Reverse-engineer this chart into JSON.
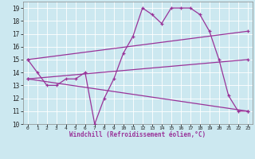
{
  "xlabel": "Windchill (Refroidissement éolien,°C)",
  "bg_color": "#cce8f0",
  "line_color": "#993399",
  "grid_color": "#ffffff",
  "xlim": [
    -0.5,
    23.5
  ],
  "ylim": [
    10,
    19.5
  ],
  "xticks": [
    0,
    1,
    2,
    3,
    4,
    5,
    6,
    7,
    8,
    9,
    10,
    11,
    12,
    13,
    14,
    15,
    16,
    17,
    18,
    19,
    20,
    21,
    22,
    23
  ],
  "yticks": [
    10,
    11,
    12,
    13,
    14,
    15,
    16,
    17,
    18,
    19
  ],
  "series0_x": [
    0,
    1,
    2,
    3,
    4,
    5,
    6,
    7,
    8,
    9,
    10,
    11,
    12,
    13,
    14,
    15,
    16,
    17,
    18,
    19,
    20,
    21,
    22,
    23
  ],
  "series0_y": [
    15,
    14,
    13,
    13,
    13.5,
    13.5,
    14,
    10,
    12,
    13.5,
    15.5,
    16.8,
    19,
    18.5,
    17.8,
    19,
    19,
    19,
    18.5,
    17.2,
    15,
    12.2,
    11,
    11
  ],
  "series1_x": [
    0,
    23
  ],
  "series1_y": [
    15,
    17.2
  ],
  "series2_x": [
    0,
    23
  ],
  "series2_y": [
    13.5,
    15.0
  ],
  "series3_x": [
    0,
    23
  ],
  "series3_y": [
    13.5,
    11.0
  ]
}
